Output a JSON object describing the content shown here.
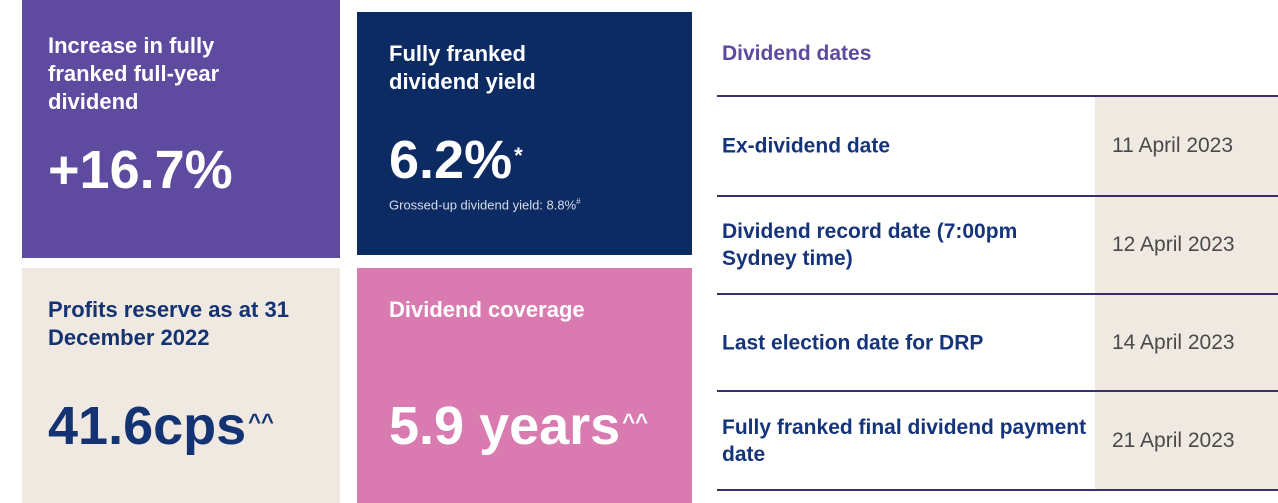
{
  "tiles": [
    {
      "title": "Increase in fully franked full-year dividend",
      "value": "+16.7%"
    },
    {
      "title": "Fully franked dividend yield",
      "value": "6.2%",
      "superscript": "*",
      "note": "Grossed-up dividend yield: 8.8%",
      "note_superscript": "#"
    },
    {
      "title": "Profits reserve as at 31 December 2022",
      "value": "41.6cps",
      "superscript": "^^"
    },
    {
      "title": "Dividend coverage",
      "value": "5.9 years",
      "superscript": "^^"
    }
  ],
  "dividend_dates": {
    "title": "Dividend dates",
    "rows": [
      [
        "Ex-dividend date",
        "11 April 2023"
      ],
      [
        "Dividend record date (7:00pm Sydney time)",
        "12 April 2023"
      ],
      [
        "Last election date for DRP",
        "14 April 2023"
      ],
      [
        "Fully franked final dividend payment date",
        "21 April 2023"
      ]
    ]
  }
}
